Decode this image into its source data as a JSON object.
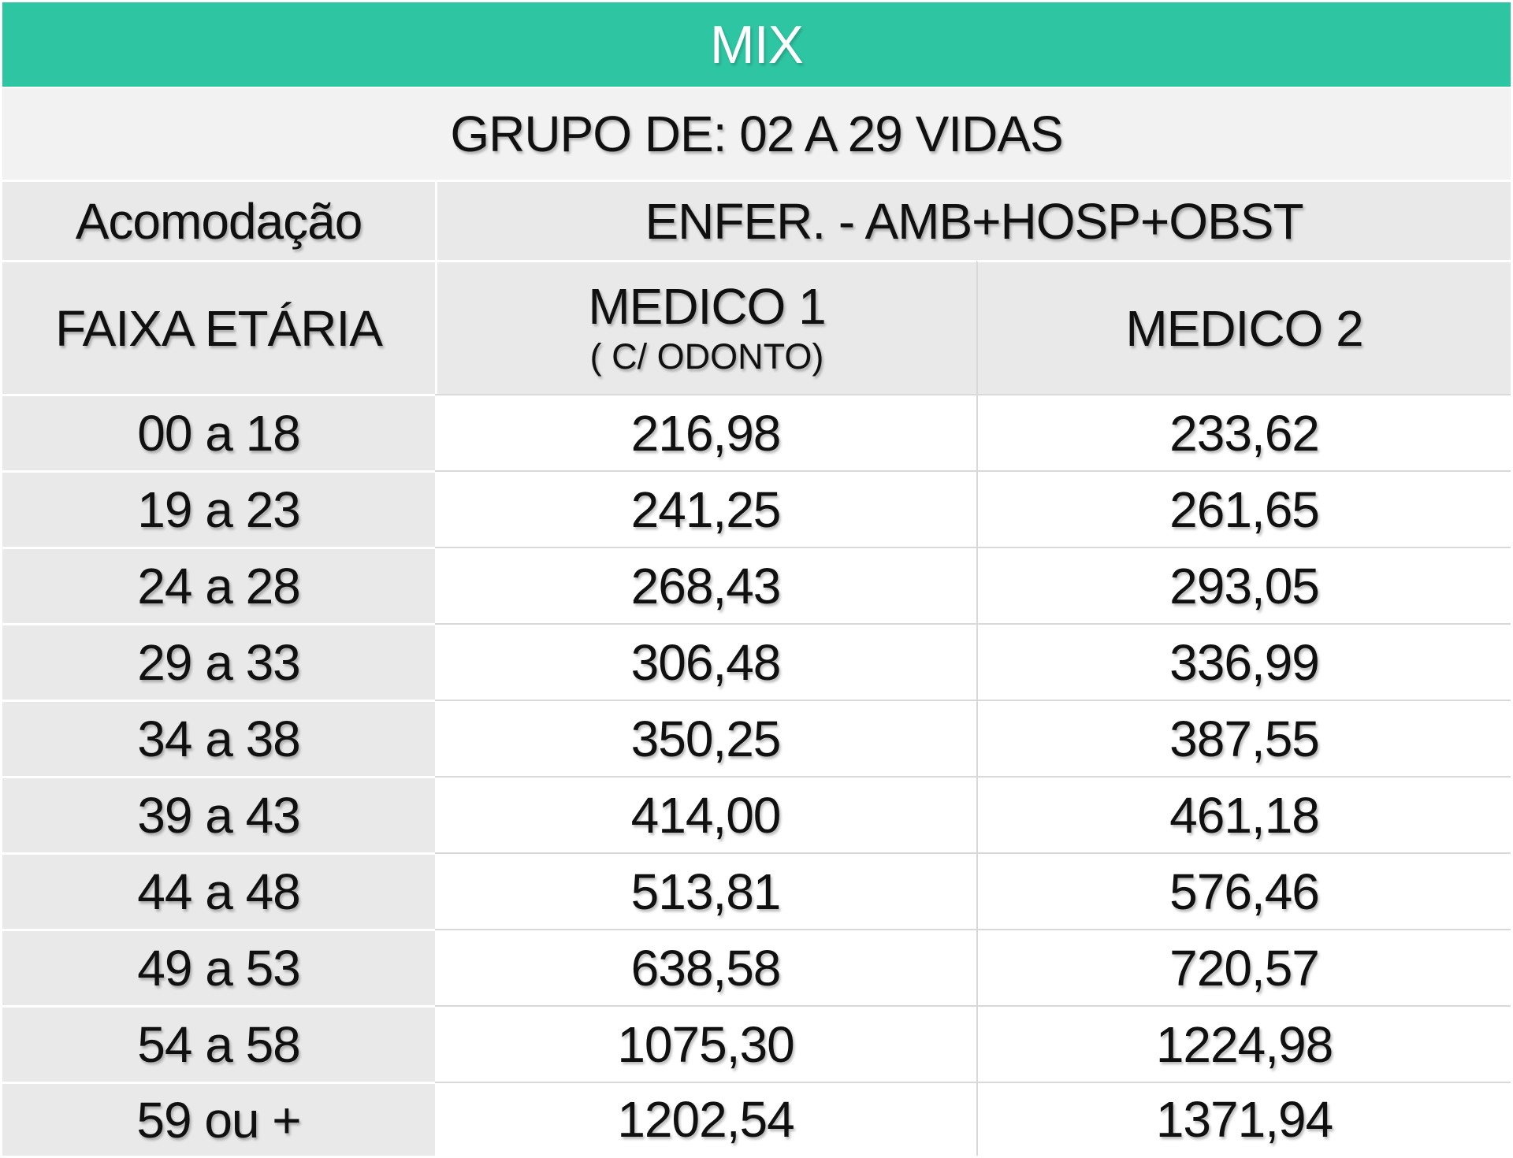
{
  "table": {
    "title": "MIX",
    "subtitle": "GRUPO DE: 02 A 29 VIDAS",
    "accommodation_header": "Acomodação",
    "plan_header": "ENFER.  - AMB+HOSP+OBST",
    "age_column_header": "FAIXA ETÁRIA",
    "medico1_header": {
      "line1": "MEDICO 1",
      "line2": "( C/ ODONTO)"
    },
    "medico2_header": "MEDICO 2",
    "rows": [
      {
        "faixa": "00 a 18",
        "medico1": "216,98",
        "medico2": "233,62"
      },
      {
        "faixa": "19 a 23",
        "medico1": "241,25",
        "medico2": "261,65"
      },
      {
        "faixa": "24 a 28",
        "medico1": "268,43",
        "medico2": "293,05"
      },
      {
        "faixa": "29 a 33",
        "medico1": "306,48",
        "medico2": "336,99"
      },
      {
        "faixa": "34 a 38",
        "medico1": "350,25",
        "medico2": "387,55"
      },
      {
        "faixa": "39 a 43",
        "medico1": "414,00",
        "medico2": "461,18"
      },
      {
        "faixa": "44 a 48",
        "medico1": "513,81",
        "medico2": "576,46"
      },
      {
        "faixa": "49 a 53",
        "medico1": "638,58",
        "medico2": "720,57"
      },
      {
        "faixa": "54 a 58",
        "medico1": "1075,30",
        "medico2": "1224,98"
      },
      {
        "faixa": "59 ou +",
        "medico1": "1202,54",
        "medico2": "1371,94"
      }
    ]
  },
  "colors": {
    "accent_teal": "#2ec5a2",
    "subtitle_row_bg": "#f2f2f2",
    "header_gray_bg": "#e9e9e9",
    "value_cell_bg": "#ffffff",
    "separator_on_white": "#d9d9d9",
    "separator_on_gray": "#ffffff",
    "title_text": "#ffffff",
    "body_text": "#101010"
  }
}
